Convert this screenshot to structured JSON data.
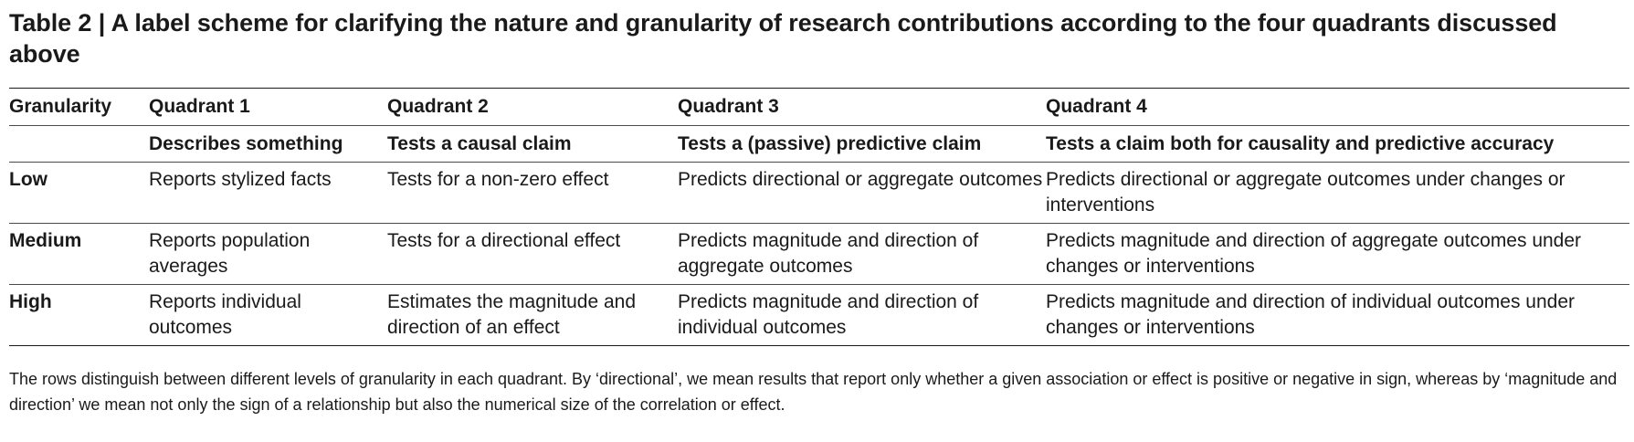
{
  "caption": {
    "label": "Table 2",
    "separator": "|",
    "title": "A label scheme for clarifying the nature and granularity of research contributions according to the four quadrants discussed above"
  },
  "table": {
    "headers": [
      "Granularity",
      "Quadrant 1",
      "Quadrant 2",
      "Quadrant 3",
      "Quadrant 4"
    ],
    "subheaders": [
      "",
      "Describes something",
      "Tests a causal claim",
      "Tests a (passive) predictive claim",
      "Tests a claim both for causality and predictive accuracy"
    ],
    "rows": [
      {
        "granularity": "Low",
        "cells": [
          "Reports stylized facts",
          "Tests for a non-zero effect",
          "Predicts directional or aggregate outcomes",
          "Predicts directional or aggregate outcomes under changes or interventions"
        ]
      },
      {
        "granularity": "Medium",
        "cells": [
          "Reports population averages",
          "Tests for a directional effect",
          "Predicts magnitude and direction of aggregate outcomes",
          "Predicts magnitude and direction of aggregate outcomes under changes or interventions"
        ]
      },
      {
        "granularity": "High",
        "cells": [
          "Reports individual outcomes",
          "Estimates the magnitude and direction of an effect",
          "Predicts magnitude and direction of individual outcomes",
          "Predicts magnitude and direction of individual outcomes under changes or interventions"
        ]
      }
    ]
  },
  "footnote": "The rows distinguish between different levels of granularity in each quadrant. By ‘directional’, we mean results that report only whether a given association or effect is positive or negative in sign, whereas by ‘magnitude and direction’ we mean not only the sign of a relationship but also the numerical size of the correlation or effect."
}
